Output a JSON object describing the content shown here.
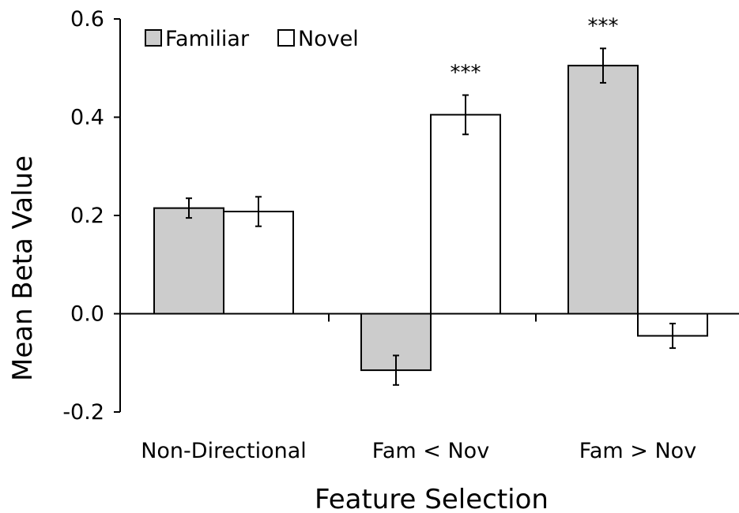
{
  "chart_data": {
    "type": "bar",
    "xlabel": "Feature Selection",
    "ylabel": "Mean Beta Value",
    "ylim": [
      -0.2,
      0.6
    ],
    "yticks": [
      "-0.2",
      "0.0",
      "0.2",
      "0.4",
      "0.6"
    ],
    "legend_position": "top-left",
    "categories": [
      "Non-Directional",
      "Fam < Nov",
      "Fam > Nov"
    ],
    "series": [
      {
        "name": "Familiar",
        "color": "#cccccc",
        "values": [
          0.215,
          -0.115,
          0.505
        ],
        "errors": [
          0.02,
          0.03,
          0.035
        ]
      },
      {
        "name": "Novel",
        "color": "#ffffff",
        "values": [
          0.208,
          0.405,
          -0.045
        ],
        "errors": [
          0.03,
          0.04,
          0.025
        ]
      }
    ],
    "annotations": [
      {
        "text": "***",
        "category": 1,
        "series": 1
      },
      {
        "text": "***",
        "category": 2,
        "series": 0
      }
    ]
  }
}
